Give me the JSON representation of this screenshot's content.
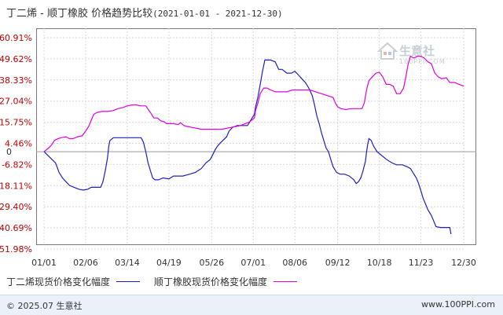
{
  "header": {
    "title": "丁二烯 - 顺丁橡胶 价格趋势比较",
    "date_range": "(2021-01-01 - 2021-12-30)"
  },
  "watermark": {
    "name": "生意社",
    "url": "100PPI.COM"
  },
  "footer": {
    "left": "© 2025.07 生意社",
    "right": "www.100PPI.com"
  },
  "colors": {
    "series1": "#1f1fbf",
    "series2": "#e000e0",
    "zero_line": "#b0b0b0",
    "grid": "#d9d9d9"
  },
  "chart_data": {
    "type": "line",
    "title": "丁二烯 - 顺丁橡胶 价格趋势比较",
    "xlabel": "",
    "ylabel": "",
    "ylim": [
      -51.98,
      60.91
    ],
    "y_ticks": [
      "60.91%",
      "49.62%",
      "38.33%",
      "27.04%",
      "15.75%",
      "4.46%",
      "-6.82%",
      "-18.11%",
      "-29.40%",
      "-40.69%",
      "-51.98%"
    ],
    "y_tick_values": [
      60.91,
      49.62,
      38.33,
      27.04,
      15.75,
      4.46,
      -6.82,
      -18.11,
      -29.4,
      -40.69,
      -51.98
    ],
    "zero_label": "0",
    "x_ticks": [
      "01/01",
      "02/06",
      "03/14",
      "04/19",
      "05/26",
      "07/01",
      "08/06",
      "09/12",
      "10/18",
      "11/23",
      "12/30"
    ],
    "x_tick_days": [
      0,
      36,
      72,
      108,
      145,
      181,
      217,
      254,
      290,
      326,
      363
    ],
    "grid": true,
    "legend_position": "bottom-left",
    "series": [
      {
        "name": "丁二烯现货价格变化幅度",
        "points": [
          [
            0,
            0
          ],
          [
            5,
            -3
          ],
          [
            10,
            -6
          ],
          [
            13,
            -11
          ],
          [
            16,
            -14
          ],
          [
            19,
            -16
          ],
          [
            22,
            -18
          ],
          [
            26,
            -19
          ],
          [
            30,
            -20
          ],
          [
            34,
            -20.5
          ],
          [
            38,
            -20
          ],
          [
            41,
            -19
          ],
          [
            46,
            -19
          ],
          [
            49,
            -19
          ],
          [
            51,
            -16
          ],
          [
            53,
            -10
          ],
          [
            55,
            -3
          ],
          [
            56,
            3
          ],
          [
            57,
            6
          ],
          [
            60,
            7.5
          ],
          [
            65,
            7.5
          ],
          [
            70,
            7.5
          ],
          [
            75,
            7.5
          ],
          [
            80,
            7.5
          ],
          [
            84,
            7.5
          ],
          [
            86,
            5
          ],
          [
            88,
            0
          ],
          [
            90,
            -6
          ],
          [
            92,
            -10
          ],
          [
            94,
            -14
          ],
          [
            96,
            -15
          ],
          [
            99,
            -15
          ],
          [
            103,
            -14
          ],
          [
            108,
            -14.5
          ],
          [
            112,
            -13
          ],
          [
            120,
            -13
          ],
          [
            126,
            -12
          ],
          [
            131,
            -11
          ],
          [
            136,
            -9
          ],
          [
            140,
            -6
          ],
          [
            144,
            -4
          ],
          [
            148,
            1
          ],
          [
            150,
            3
          ],
          [
            153,
            5
          ],
          [
            158,
            8
          ],
          [
            160,
            11
          ],
          [
            163,
            13
          ],
          [
            167,
            14
          ],
          [
            172,
            14
          ],
          [
            176,
            14
          ],
          [
            178,
            16
          ],
          [
            180,
            18
          ],
          [
            182,
            20
          ],
          [
            183,
            24
          ],
          [
            185,
            29
          ],
          [
            187,
            36
          ],
          [
            189,
            43
          ],
          [
            191,
            49
          ],
          [
            196,
            49
          ],
          [
            200,
            48
          ],
          [
            203,
            44
          ],
          [
            206,
            44
          ],
          [
            210,
            42
          ],
          [
            214,
            42
          ],
          [
            217,
            43
          ],
          [
            220,
            41
          ],
          [
            223,
            39
          ],
          [
            226,
            37
          ],
          [
            229,
            34
          ],
          [
            232,
            30
          ],
          [
            234,
            25
          ],
          [
            236,
            19
          ],
          [
            238,
            15
          ],
          [
            240,
            10
          ],
          [
            242,
            6
          ],
          [
            244,
            2
          ],
          [
            246,
            0
          ],
          [
            248,
            -4
          ],
          [
            250,
            -8
          ],
          [
            253,
            -11
          ],
          [
            256,
            -12
          ],
          [
            260,
            -12
          ],
          [
            264,
            -13
          ],
          [
            268,
            -15
          ],
          [
            270,
            -17
          ],
          [
            272,
            -16
          ],
          [
            274,
            -14
          ],
          [
            276,
            -10
          ],
          [
            278,
            -5
          ],
          [
            279,
            0
          ],
          [
            280,
            4
          ],
          [
            281,
            7
          ],
          [
            283,
            6
          ],
          [
            285,
            3
          ],
          [
            288,
            0
          ],
          [
            292,
            -2
          ],
          [
            296,
            -4
          ],
          [
            301,
            -6
          ],
          [
            305,
            -7
          ],
          [
            310,
            -7
          ],
          [
            314,
            -8
          ],
          [
            317,
            -9
          ],
          [
            319,
            -11
          ],
          [
            322,
            -14
          ],
          [
            324,
            -17
          ],
          [
            326,
            -21
          ],
          [
            328,
            -25
          ],
          [
            330,
            -28
          ],
          [
            332,
            -31
          ],
          [
            335,
            -34
          ],
          [
            337,
            -37
          ],
          [
            339,
            -40
          ],
          [
            343,
            -40.5
          ],
          [
            347,
            -40.5
          ],
          [
            350,
            -40.5
          ],
          [
            351,
            -40.5
          ],
          [
            352,
            -44
          ]
        ]
      },
      {
        "name": "顺丁橡胶现货价格变化幅度",
        "points": [
          [
            0,
            0
          ],
          [
            4,
            2
          ],
          [
            7,
            4
          ],
          [
            9,
            6
          ],
          [
            12,
            7
          ],
          [
            15,
            7.5
          ],
          [
            19,
            8
          ],
          [
            22,
            7
          ],
          [
            25,
            7
          ],
          [
            29,
            8
          ],
          [
            33,
            8.5
          ],
          [
            36,
            11
          ],
          [
            39,
            14
          ],
          [
            41,
            17
          ],
          [
            43,
            20
          ],
          [
            46,
            21
          ],
          [
            50,
            21.5
          ],
          [
            55,
            21.5
          ],
          [
            60,
            22
          ],
          [
            64,
            23
          ],
          [
            68,
            23.5
          ],
          [
            72,
            24.5
          ],
          [
            76,
            25
          ],
          [
            80,
            25
          ],
          [
            84,
            24.5
          ],
          [
            88,
            24.5
          ],
          [
            92,
            21
          ],
          [
            95,
            18
          ],
          [
            98,
            18
          ],
          [
            101,
            16.5
          ],
          [
            104,
            16
          ],
          [
            106,
            15
          ],
          [
            108,
            15
          ],
          [
            112,
            15
          ],
          [
            116,
            14.5
          ],
          [
            118,
            15.5
          ],
          [
            121,
            14
          ],
          [
            124,
            13.5
          ],
          [
            128,
            13
          ],
          [
            132,
            12.5
          ],
          [
            136,
            12
          ],
          [
            140,
            12
          ],
          [
            145,
            12
          ],
          [
            150,
            12
          ],
          [
            154,
            12
          ],
          [
            158,
            12.5
          ],
          [
            162,
            13
          ],
          [
            166,
            13.5
          ],
          [
            170,
            14
          ],
          [
            174,
            15
          ],
          [
            178,
            16
          ],
          [
            182,
            18
          ],
          [
            183,
            22
          ],
          [
            185,
            26
          ],
          [
            187,
            31
          ],
          [
            190,
            34
          ],
          [
            193,
            34
          ],
          [
            196,
            33
          ],
          [
            200,
            32
          ],
          [
            205,
            32
          ],
          [
            210,
            32
          ],
          [
            215,
            33
          ],
          [
            220,
            33
          ],
          [
            225,
            33
          ],
          [
            230,
            33
          ],
          [
            235,
            32
          ],
          [
            240,
            31
          ],
          [
            245,
            30
          ],
          [
            250,
            29
          ],
          [
            252,
            26
          ],
          [
            254,
            24
          ],
          [
            257,
            23
          ],
          [
            261,
            22.5
          ],
          [
            265,
            23
          ],
          [
            270,
            23
          ],
          [
            275,
            23
          ],
          [
            277,
            26
          ],
          [
            279,
            33
          ],
          [
            281,
            38
          ],
          [
            284,
            40
          ],
          [
            287,
            42
          ],
          [
            290,
            42.5
          ],
          [
            293,
            40
          ],
          [
            296,
            36
          ],
          [
            299,
            36
          ],
          [
            302,
            35
          ],
          [
            305,
            31
          ],
          [
            308,
            31
          ],
          [
            311,
            34
          ],
          [
            313,
            40
          ],
          [
            315,
            47
          ],
          [
            317,
            51
          ],
          [
            320,
            50
          ],
          [
            323,
            51
          ],
          [
            326,
            51
          ],
          [
            329,
            50
          ],
          [
            332,
            48
          ],
          [
            335,
            47
          ],
          [
            338,
            42
          ],
          [
            341,
            40
          ],
          [
            344,
            39
          ],
          [
            348,
            39.5
          ],
          [
            351,
            37
          ],
          [
            355,
            37
          ],
          [
            359,
            36
          ],
          [
            363,
            35
          ]
        ]
      }
    ]
  }
}
